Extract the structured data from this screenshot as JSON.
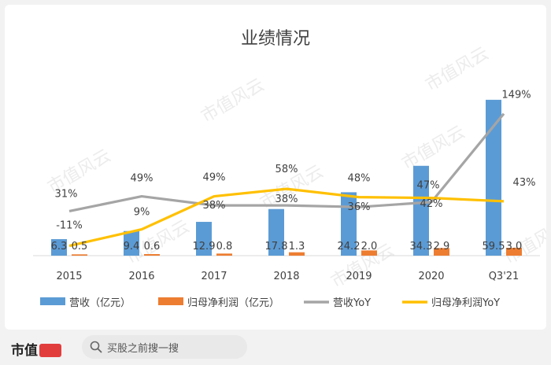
{
  "watermark": "市值风云",
  "chart_data": {
    "type": "bar",
    "title": "业绩情况",
    "categories": [
      "2015",
      "2016",
      "2017",
      "2018",
      "2019",
      "2020",
      "Q3'21"
    ],
    "series": [
      {
        "name": "营收（亿元）",
        "kind": "bar",
        "color": "#5b9bd5",
        "values": [
          6.3,
          9.4,
          12.9,
          17.8,
          24.2,
          34.3,
          59.5
        ],
        "labels": [
          "6.3",
          "9.4",
          "12.9",
          "17.8",
          "24.2",
          "34.3",
          "59.5"
        ]
      },
      {
        "name": "归母净利润（亿元）",
        "kind": "bar",
        "color": "#ed7d31",
        "values": [
          0.5,
          0.6,
          0.8,
          1.3,
          2.0,
          2.9,
          3.0
        ],
        "labels": [
          "0.5",
          "0.6",
          "0.8",
          "1.3",
          "2.0",
          "2.9",
          "3.0"
        ]
      },
      {
        "name": "营收YoY",
        "kind": "line",
        "color": "#a5a5a5",
        "values": [
          31,
          49,
          38,
          38,
          36,
          42,
          149
        ],
        "labels": [
          "31%",
          "49%",
          "38%",
          "38%",
          "36%",
          "42%",
          "149%"
        ]
      },
      {
        "name": "归母净利润YoY",
        "kind": "line",
        "color": "#ffc000",
        "values": [
          -11,
          9,
          49,
          58,
          48,
          47,
          43
        ],
        "labels": [
          "-11%",
          "9%",
          "49%",
          "58%",
          "48%",
          "47%",
          "43%"
        ]
      }
    ],
    "legend_position": "bottom",
    "grid": false
  },
  "footer": {
    "brand": "市值",
    "search_placeholder": "买股之前搜一搜"
  }
}
